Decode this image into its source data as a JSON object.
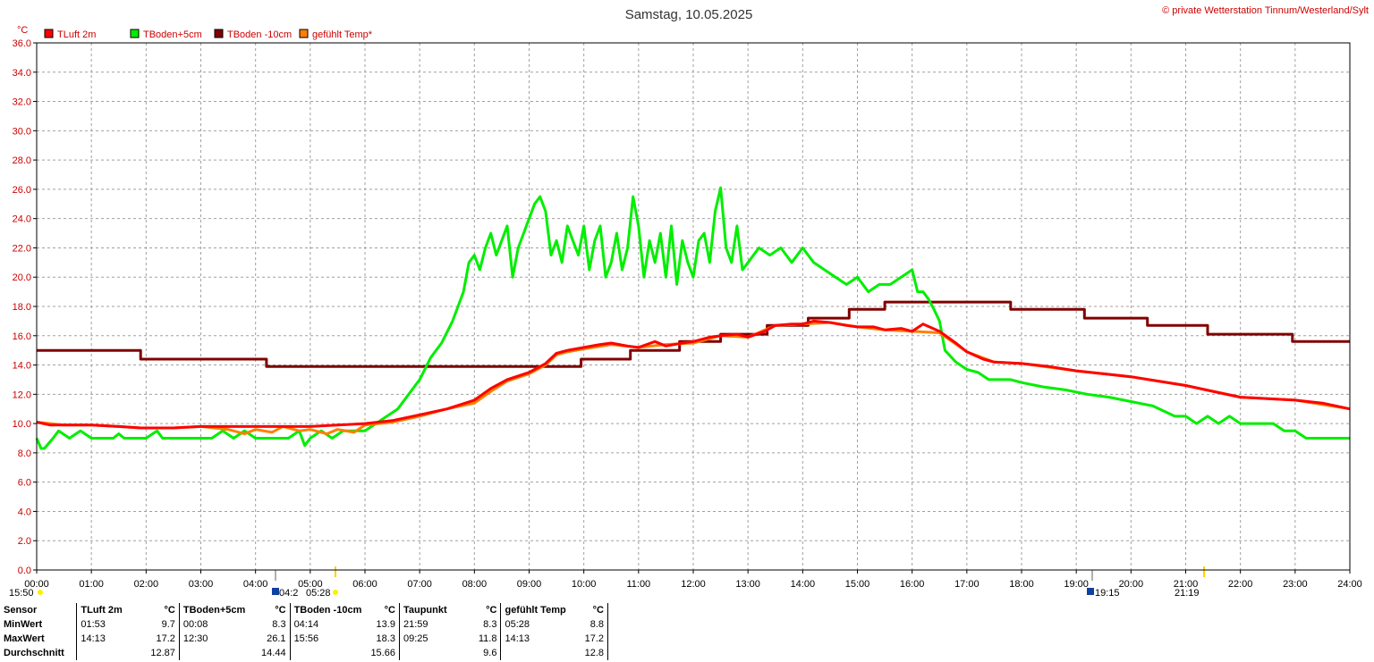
{
  "title": "Samstag, 10.05.2025",
  "copyright": "© private Wetterstation Tinnum/Westerland/Sylt",
  "unit": "°C",
  "colors": {
    "tluft": "#ff0000",
    "tboden5": "#00ee00",
    "tboden10": "#800000",
    "gefuehlt": "#ff8000",
    "axis_text": "#cc0000",
    "grid": "#a0a0a0"
  },
  "chart_data": {
    "type": "line",
    "title": "Samstag, 10.05.2025",
    "xlabel": "",
    "ylabel": "°C",
    "xlim": [
      0,
      24
    ],
    "ylim": [
      0,
      36
    ],
    "grid": true,
    "legend_position": "top-left",
    "x_ticks": [
      "00:00",
      "01:00",
      "02:00",
      "03:00",
      "04:00",
      "05:00",
      "06:00",
      "07:00",
      "08:00",
      "09:00",
      "10:00",
      "11:00",
      "12:00",
      "13:00",
      "14:00",
      "15:00",
      "16:00",
      "17:00",
      "18:00",
      "19:00",
      "20:00",
      "21:00",
      "22:00",
      "23:00",
      "24:00"
    ],
    "y_ticks": [
      "0.0",
      "2.0",
      "4.0",
      "6.0",
      "8.0",
      "10.0",
      "12.0",
      "14.0",
      "16.0",
      "18.0",
      "20.0",
      "22.0",
      "24.0",
      "26.0",
      "28.0",
      "30.0",
      "32.0",
      "34.0",
      "36.0"
    ],
    "series": [
      {
        "name": "TLuft 2m",
        "color": "#ff0000",
        "x": [
          0,
          0.25,
          0.5,
          1.0,
          1.5,
          1.9,
          2.5,
          3.0,
          3.5,
          4.0,
          4.5,
          5.0,
          5.5,
          6.0,
          6.5,
          7.0,
          7.5,
          8.0,
          8.3,
          8.6,
          9.0,
          9.3,
          9.5,
          9.7,
          10.0,
          10.3,
          10.5,
          10.8,
          11.0,
          11.3,
          11.5,
          11.8,
          12.0,
          12.3,
          12.5,
          12.8,
          13.0,
          13.3,
          13.5,
          13.8,
          14.0,
          14.2,
          14.5,
          14.8,
          15.0,
          15.3,
          15.5,
          15.8,
          16.0,
          16.2,
          16.5,
          16.8,
          17.0,
          17.3,
          17.5,
          18.0,
          18.5,
          19.0,
          19.5,
          20.0,
          20.5,
          21.0,
          21.5,
          22.0,
          22.5,
          23.0,
          23.5,
          24.0
        ],
        "y": [
          10.1,
          9.9,
          9.9,
          9.9,
          9.8,
          9.7,
          9.7,
          9.8,
          9.8,
          9.8,
          9.8,
          9.8,
          9.9,
          10.0,
          10.2,
          10.6,
          11.0,
          11.6,
          12.4,
          13.0,
          13.5,
          14.1,
          14.8,
          15.0,
          15.2,
          15.4,
          15.5,
          15.3,
          15.2,
          15.6,
          15.3,
          15.5,
          15.6,
          15.9,
          16.0,
          16.1,
          15.9,
          16.3,
          16.7,
          16.8,
          16.8,
          17.0,
          16.9,
          16.7,
          16.6,
          16.6,
          16.4,
          16.5,
          16.3,
          16.8,
          16.3,
          15.5,
          14.9,
          14.4,
          14.2,
          14.1,
          13.9,
          13.6,
          13.4,
          13.2,
          12.9,
          12.6,
          12.2,
          11.8,
          11.7,
          11.6,
          11.4,
          11.0
        ]
      },
      {
        "name": "TBoden+5cm",
        "color": "#00ee00",
        "x": [
          0,
          0.08,
          0.14,
          0.3,
          0.4,
          0.6,
          0.8,
          1.0,
          1.2,
          1.4,
          1.5,
          1.6,
          1.8,
          2.0,
          2.2,
          2.3,
          2.5,
          2.7,
          3.0,
          3.2,
          3.4,
          3.6,
          3.8,
          4.0,
          4.2,
          4.4,
          4.6,
          4.8,
          4.9,
          5.0,
          5.2,
          5.4,
          5.6,
          5.8,
          6.0,
          6.2,
          6.4,
          6.6,
          6.8,
          7.0,
          7.2,
          7.4,
          7.6,
          7.8,
          7.9,
          8.0,
          8.1,
          8.2,
          8.3,
          8.4,
          8.5,
          8.6,
          8.7,
          8.8,
          8.9,
          9.0,
          9.1,
          9.2,
          9.3,
          9.4,
          9.5,
          9.6,
          9.7,
          9.8,
          9.9,
          10.0,
          10.1,
          10.2,
          10.3,
          10.4,
          10.5,
          10.6,
          10.7,
          10.8,
          10.9,
          11.0,
          11.1,
          11.2,
          11.3,
          11.4,
          11.5,
          11.6,
          11.7,
          11.8,
          11.9,
          12.0,
          12.1,
          12.2,
          12.3,
          12.4,
          12.5,
          12.6,
          12.7,
          12.8,
          12.9,
          13.0,
          13.2,
          13.4,
          13.6,
          13.8,
          14.0,
          14.2,
          14.4,
          14.6,
          14.8,
          15.0,
          15.2,
          15.4,
          15.6,
          15.8,
          16.0,
          16.1,
          16.2,
          16.3,
          16.4,
          16.5,
          16.6,
          16.8,
          17.0,
          17.2,
          17.4,
          17.6,
          17.8,
          18.0,
          18.4,
          18.8,
          19.2,
          19.6,
          20.0,
          20.4,
          20.8,
          21.0,
          21.2,
          21.4,
          21.6,
          21.8,
          22.0,
          22.2,
          22.4,
          22.6,
          22.8,
          23.0,
          23.2,
          23.4,
          23.6,
          23.8,
          24.0
        ],
        "y": [
          9.0,
          8.3,
          8.3,
          9.0,
          9.5,
          9.0,
          9.5,
          9.0,
          9.0,
          9.0,
          9.3,
          9.0,
          9.0,
          9.0,
          9.5,
          9.0,
          9.0,
          9.0,
          9.0,
          9.0,
          9.5,
          9.0,
          9.5,
          9.0,
          9.0,
          9.0,
          9.0,
          9.5,
          8.5,
          9.0,
          9.5,
          9.0,
          9.5,
          9.5,
          9.5,
          10.0,
          10.5,
          11.0,
          12.0,
          13.0,
          14.5,
          15.5,
          17.0,
          19.0,
          21.0,
          21.5,
          20.5,
          22.0,
          23.0,
          21.5,
          22.5,
          23.5,
          20.0,
          22.0,
          23.0,
          24.0,
          25.0,
          25.5,
          24.5,
          21.5,
          22.5,
          21.0,
          23.5,
          22.5,
          21.5,
          23.5,
          20.5,
          22.5,
          23.5,
          20.0,
          21.0,
          23.0,
          20.5,
          22.0,
          25.5,
          23.5,
          20.0,
          22.5,
          21.0,
          23.0,
          20.0,
          23.5,
          19.5,
          22.5,
          21.0,
          20.0,
          22.5,
          23.0,
          21.0,
          24.5,
          26.1,
          22.0,
          21.0,
          23.5,
          20.5,
          21.0,
          22.0,
          21.5,
          22.0,
          21.0,
          22.0,
          21.0,
          20.5,
          20.0,
          19.5,
          20.0,
          19.0,
          19.5,
          19.5,
          20.0,
          20.5,
          19.0,
          19.0,
          18.5,
          17.8,
          17.0,
          15.0,
          14.2,
          13.7,
          13.5,
          13.0,
          13.0,
          13.0,
          12.8,
          12.5,
          12.3,
          12.0,
          11.8,
          11.5,
          11.2,
          10.5,
          10.5,
          10.0,
          10.5,
          10.0,
          10.5,
          10.0,
          10.0,
          10.0,
          10.0,
          9.5,
          9.5,
          9.0,
          9.0,
          9.0,
          9.0,
          9.0
        ]
      },
      {
        "name": "TBoden -10cm",
        "color": "#800000",
        "x": [
          0,
          1.9,
          1.9,
          4.2,
          4.2,
          9.95,
          9.95,
          10.85,
          10.85,
          11.75,
          11.75,
          12.5,
          12.5,
          13.35,
          13.35,
          14.1,
          14.1,
          14.85,
          14.85,
          15.5,
          15.5,
          16.4,
          16.4,
          17.8,
          17.8,
          19.15,
          19.15,
          20.3,
          20.3,
          21.4,
          21.4,
          22.95,
          22.95,
          24.0
        ],
        "y": [
          15.0,
          15.0,
          14.4,
          14.4,
          13.9,
          13.9,
          14.4,
          14.4,
          15.0,
          15.0,
          15.6,
          15.6,
          16.1,
          16.1,
          16.7,
          16.7,
          17.2,
          17.2,
          17.8,
          17.8,
          18.3,
          18.3,
          18.3,
          18.3,
          17.8,
          17.8,
          17.2,
          17.2,
          16.7,
          16.7,
          16.1,
          16.1,
          15.6,
          15.6
        ]
      },
      {
        "name": "gefühlt Temp*",
        "color": "#ff8000",
        "x": [
          0,
          0.5,
          1.0,
          1.5,
          1.9,
          2.5,
          3.0,
          3.5,
          3.8,
          4.0,
          4.3,
          4.5,
          4.8,
          5.0,
          5.3,
          5.5,
          5.8,
          6.0,
          6.5,
          7.0,
          7.5,
          8.0,
          8.3,
          8.6,
          9.0,
          9.3,
          9.5,
          9.7,
          10.0,
          10.5,
          11.0,
          11.5,
          12.0,
          12.5,
          13.0,
          13.5,
          14.0,
          14.5,
          15.0,
          15.5,
          16.0,
          16.5,
          17.0,
          17.5,
          18.0,
          19.0,
          20.0,
          21.0,
          22.0,
          23.0,
          24.0
        ],
        "y": [
          10.1,
          9.9,
          9.9,
          9.8,
          9.7,
          9.7,
          9.8,
          9.6,
          9.3,
          9.6,
          9.4,
          9.8,
          9.5,
          9.6,
          9.3,
          9.6,
          9.4,
          9.9,
          10.1,
          10.5,
          11.0,
          11.4,
          12.2,
          12.9,
          13.4,
          14.0,
          14.7,
          14.9,
          15.1,
          15.4,
          15.2,
          15.4,
          15.5,
          16.0,
          15.9,
          16.7,
          16.8,
          16.9,
          16.6,
          16.4,
          16.3,
          16.2,
          14.9,
          14.2,
          14.1,
          13.6,
          13.2,
          12.6,
          11.8,
          11.6,
          11.0
        ]
      }
    ]
  },
  "legend": [
    {
      "label": "TLuft 2m",
      "color": "#ff0000"
    },
    {
      "label": "TBoden+5cm",
      "color": "#00ee00"
    },
    {
      "label": "TBoden -10cm",
      "color": "#800000"
    },
    {
      "label": "gefühlt Temp*",
      "color": "#ff8000"
    }
  ],
  "sun_markers": {
    "left_time": "15:50",
    "dawn_label": "04:2",
    "sunrise": "05:28",
    "sunset": "19:15",
    "dusk": "21:19"
  },
  "stats": {
    "headers": [
      "Sensor",
      "TLuft 2m",
      "°C",
      "TBoden+5cm",
      "°C",
      "TBoden -10cm",
      "°C",
      "Taupunkt",
      "°C",
      "gefühlt Temp",
      "°C"
    ],
    "rows": [
      {
        "label": "MinWert",
        "cells": [
          "01:53",
          "9.7",
          "00:08",
          "8.3",
          "04:14",
          "13.9",
          "21:59",
          "8.3",
          "05:28",
          "8.8"
        ]
      },
      {
        "label": "MaxWert",
        "cells": [
          "14:13",
          "17.2",
          "12:30",
          "26.1",
          "15:56",
          "18.3",
          "09:25",
          "11.8",
          "14:13",
          "17.2"
        ]
      },
      {
        "label": "Durchschnitt",
        "cells": [
          "",
          "12.87",
          "",
          "14.44",
          "",
          "15.66",
          "",
          "9.6",
          "",
          "12.8"
        ]
      }
    ]
  }
}
